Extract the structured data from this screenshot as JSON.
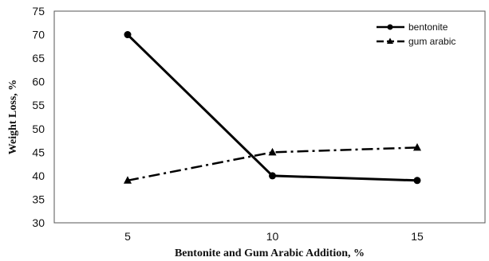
{
  "chart_data": {
    "type": "line",
    "title": "",
    "xlabel": "Bentonite and Gum Arabic Addition, %",
    "ylabel": "Weight Loss, %",
    "categories": [
      "5",
      "10",
      "15"
    ],
    "x": [
      5,
      10,
      15
    ],
    "ylim": [
      30,
      75
    ],
    "yticks": [
      "30",
      "35",
      "40",
      "45",
      "50",
      "55",
      "60",
      "65",
      "70",
      "75"
    ],
    "grid": false,
    "legend_position": "top-right",
    "series": [
      {
        "name": "bentonite",
        "values": [
          70,
          40,
          39
        ],
        "style": "solid",
        "marker": "circle",
        "color": "#000000"
      },
      {
        "name": "gum arabic",
        "values": [
          39,
          45,
          46
        ],
        "style": "dash-dot",
        "marker": "triangle",
        "color": "#000000"
      }
    ]
  }
}
